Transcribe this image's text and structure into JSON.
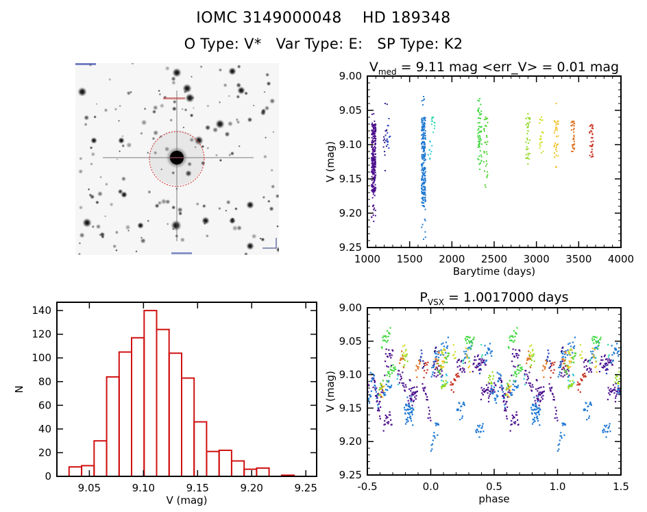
{
  "header": {
    "object_id": "IOMC 3149000048",
    "hd_id": "HD 189348",
    "o_type": "O Type: V*",
    "var_type": "Var Type: E:",
    "sp_type": "SP Type: K2"
  },
  "sky_image": {
    "description": "finder chart, target circled in red at center",
    "circle_color": "#d02020"
  },
  "chart_data": [
    {
      "type": "scatter",
      "name": "light-curve",
      "title_main": "V",
      "title_sub": "med",
      "title_rest": " = 9.11 mag <err_V> = 0.01 mag",
      "xlabel": "Barytime (days)",
      "ylabel": "V (mag)",
      "xlim": [
        1000,
        4000
      ],
      "ylim": [
        9.25,
        9.0
      ],
      "y_inverted": true,
      "xticks": [
        1000,
        1500,
        2000,
        2500,
        3000,
        3500,
        4000
      ],
      "yticks": [
        9.0,
        9.05,
        9.1,
        9.15,
        9.2,
        9.25
      ],
      "ytick_labels": [
        "9.00",
        "9.05",
        "9.10",
        "9.15",
        "9.20",
        "9.25"
      ],
      "seasons": [
        {
          "t": 1075,
          "ymin": 9.055,
          "ymax": 9.212,
          "n": 260,
          "color": "#4b0f8c",
          "core": [
            9.07,
            9.17
          ]
        },
        {
          "t": 1210,
          "ymin": 9.04,
          "ymax": 9.138,
          "n": 14,
          "color": "#2a1a8c",
          "core": [
            9.06,
            9.12
          ]
        },
        {
          "t": 1255,
          "ymin": 9.062,
          "ymax": 9.105,
          "n": 10,
          "color": "#2040c0",
          "core": [
            9.07,
            9.1
          ]
        },
        {
          "t": 1665,
          "ymin": 9.03,
          "ymax": 9.238,
          "n": 230,
          "color": "#1e78d2",
          "core": [
            9.06,
            9.19
          ]
        },
        {
          "t": 1740,
          "ymin": 9.095,
          "ymax": 9.121,
          "n": 8,
          "color": "#30c8d8",
          "core": [
            9.095,
            9.12
          ]
        },
        {
          "t": 1780,
          "ymin": 9.06,
          "ymax": 9.082,
          "n": 10,
          "color": "#30d8b0",
          "core": [
            9.06,
            9.082
          ]
        },
        {
          "t": 2330,
          "ymin": 9.033,
          "ymax": 9.136,
          "n": 60,
          "color": "#40d840",
          "core": [
            9.04,
            9.13
          ]
        },
        {
          "t": 2400,
          "ymin": 9.06,
          "ymax": 9.162,
          "n": 30,
          "color": "#50d030",
          "core": [
            9.06,
            9.16
          ]
        },
        {
          "t": 2900,
          "ymin": 9.055,
          "ymax": 9.128,
          "n": 35,
          "color": "#90d820",
          "core": [
            9.06,
            9.125
          ]
        },
        {
          "t": 3060,
          "ymin": 9.06,
          "ymax": 9.112,
          "n": 20,
          "color": "#d0e030",
          "core": [
            9.06,
            9.11
          ]
        },
        {
          "t": 3235,
          "ymin": 9.04,
          "ymax": 9.133,
          "n": 30,
          "color": "#f0c020",
          "core": [
            9.06,
            9.12
          ]
        },
        {
          "t": 3430,
          "ymin": 9.066,
          "ymax": 9.11,
          "n": 30,
          "color": "#e07020",
          "core": [
            9.066,
            9.11
          ]
        },
        {
          "t": 3650,
          "ymin": 9.071,
          "ymax": 9.118,
          "n": 30,
          "color": "#c83020",
          "core": [
            9.071,
            9.118
          ]
        }
      ]
    },
    {
      "type": "bar",
      "name": "magnitude-histogram",
      "xlabel": "V (mag)",
      "ylabel": "N",
      "xlim": [
        9.02,
        9.26
      ],
      "ylim": [
        0,
        147
      ],
      "xticks": [
        9.05,
        9.1,
        9.15,
        9.2,
        9.25
      ],
      "xtick_labels": [
        "9.05",
        "9.10",
        "9.15",
        "9.20",
        "9.25"
      ],
      "yticks": [
        0,
        20,
        40,
        60,
        80,
        100,
        120,
        140
      ],
      "bin_start": 9.0313,
      "bin_width": 0.01155,
      "values": [
        8,
        9,
        30,
        84,
        105,
        117,
        140,
        124,
        104,
        83,
        46,
        21,
        22,
        13,
        6,
        7,
        0,
        1
      ],
      "bar_color": "#d01010"
    },
    {
      "type": "scatter",
      "name": "phased-light-curve",
      "title_main": "P",
      "title_sub": "VSX",
      "title_rest": " = 1.0017000 days",
      "period_days": 1.0017,
      "xlabel": "phase",
      "ylabel": "V (mag)",
      "xlim": [
        -0.5,
        1.5
      ],
      "ylim": [
        9.25,
        9.0
      ],
      "y_inverted": true,
      "xticks": [
        -0.5,
        0.0,
        0.5,
        1.0,
        1.5
      ],
      "xtick_labels": [
        "-0.5",
        "0.0",
        "0.5",
        "1.0",
        "1.5"
      ],
      "yticks": [
        9.0,
        9.05,
        9.1,
        9.15,
        9.2,
        9.25
      ],
      "ytick_labels": [
        "9.00",
        "9.05",
        "9.10",
        "9.15",
        "9.20",
        "9.25"
      ],
      "note": "phase-folded points repeat with period 1.0 in phase; primary minimum near phase -0.4/0.6, secondary dips near 0.0 and 1.0"
    }
  ]
}
